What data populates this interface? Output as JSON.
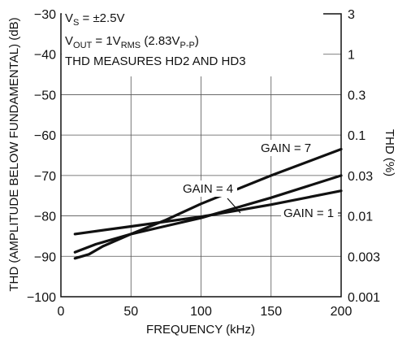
{
  "chart_data": {
    "type": "line",
    "xlabel": "FREQUENCY (kHz)",
    "ylabel_left": "THD (AMPLITUDE BELOW FUNDAMENTAL) (dB)",
    "ylabel_right": "THD (%)",
    "xlim": [
      0,
      200
    ],
    "ylim": [
      -100,
      -30
    ],
    "x_ticks": [
      "0",
      "50",
      "100",
      "150",
      "200"
    ],
    "y_ticks_left": [
      "−30",
      "−40",
      "−50",
      "−60",
      "−70",
      "−80",
      "−90",
      "−100"
    ],
    "y_ticks_right": [
      "3",
      "1",
      "0.3",
      "0.1",
      "0.03",
      "0.01",
      "0.003",
      "0.001"
    ],
    "grid": true,
    "annotations": {
      "vs": "V",
      "vs_sub": "S",
      "vs_rest": " = ±2.5V",
      "vout": "V",
      "vout_sub": "OUT",
      "vout_mid": " = 1V",
      "vout_sub2": "RMS",
      "vout_mid2": " (2.83V",
      "vout_sub3": "P-P",
      "vout_end": ")",
      "thd_note": "THD MEASURES HD2 AND HD3"
    },
    "series": [
      {
        "name": "GAIN = 1",
        "x": [
          10,
          50,
          100,
          150,
          200
        ],
        "y": [
          -84.5,
          -82.6,
          -80.2,
          -77.2,
          -73.8
        ]
      },
      {
        "name": "GAIN = 4",
        "x": [
          10,
          25,
          50,
          75,
          100,
          150,
          200
        ],
        "y": [
          -89.0,
          -87.0,
          -84.5,
          -82.5,
          -80.5,
          -75.5,
          -70.0
        ]
      },
      {
        "name": "GAIN = 7",
        "x": [
          10,
          20,
          30,
          40,
          50,
          75,
          100,
          150,
          200
        ],
        "y": [
          -90.5,
          -89.5,
          -87.5,
          -86.0,
          -84.5,
          -81.0,
          -77.0,
          -70.0,
          -63.5
        ]
      }
    ]
  }
}
